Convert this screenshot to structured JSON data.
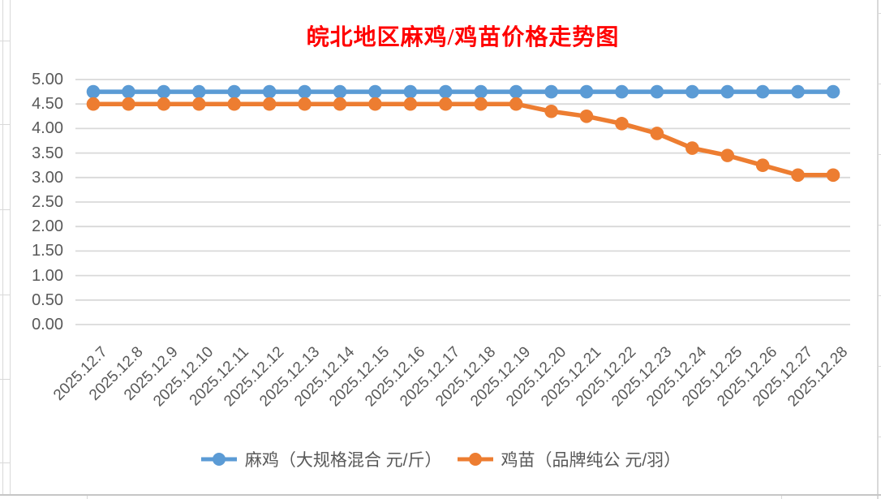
{
  "colors": {
    "series_blue": "#5B9BD5",
    "series_orange": "#ED7D31",
    "title_red": "#FF0000",
    "axis_text": "#595959",
    "gridline": "#D9D9D9"
  },
  "chart_data": {
    "type": "line",
    "title": "皖北地区麻鸡/鸡苗价格走势图",
    "categories": [
      "2025.12.7",
      "2025.12.8",
      "2025.12.9",
      "2025.12.10",
      "2025.12.11",
      "2025.12.12",
      "2025.12.13",
      "2025.12.14",
      "2025.12.15",
      "2025.12.16",
      "2025.12.17",
      "2025.12.18",
      "2025.12.19",
      "2025.12.20",
      "2025.12.21",
      "2025.12.22",
      "2025.12.23",
      "2025.12.24",
      "2025.12.25",
      "2025.12.26",
      "2025.12.27",
      "2025.12.28"
    ],
    "series": [
      {
        "name": "麻鸡（大规格混合 元/斤）",
        "color": "#5B9BD5",
        "values": [
          4.75,
          4.75,
          4.75,
          4.75,
          4.75,
          4.75,
          4.75,
          4.75,
          4.75,
          4.75,
          4.75,
          4.75,
          4.75,
          4.75,
          4.75,
          4.75,
          4.75,
          4.75,
          4.75,
          4.75,
          4.75,
          4.75
        ]
      },
      {
        "name": "鸡苗（品牌纯公 元/羽）",
        "color": "#ED7D31",
        "values": [
          4.5,
          4.5,
          4.5,
          4.5,
          4.5,
          4.5,
          4.5,
          4.5,
          4.5,
          4.5,
          4.5,
          4.5,
          4.5,
          4.35,
          4.25,
          4.1,
          3.9,
          3.6,
          3.45,
          3.25,
          3.05,
          3.05
        ]
      }
    ],
    "xlabel": "",
    "ylabel": "",
    "ylim": [
      0,
      5
    ],
    "ytick_step": 0.5,
    "ytick_labels": [
      "5.00",
      "4.50",
      "4.00",
      "3.50",
      "3.00",
      "2.50",
      "2.00",
      "1.50",
      "1.00",
      "0.50",
      "0.00"
    ],
    "grid": true,
    "legend_position": "bottom"
  }
}
